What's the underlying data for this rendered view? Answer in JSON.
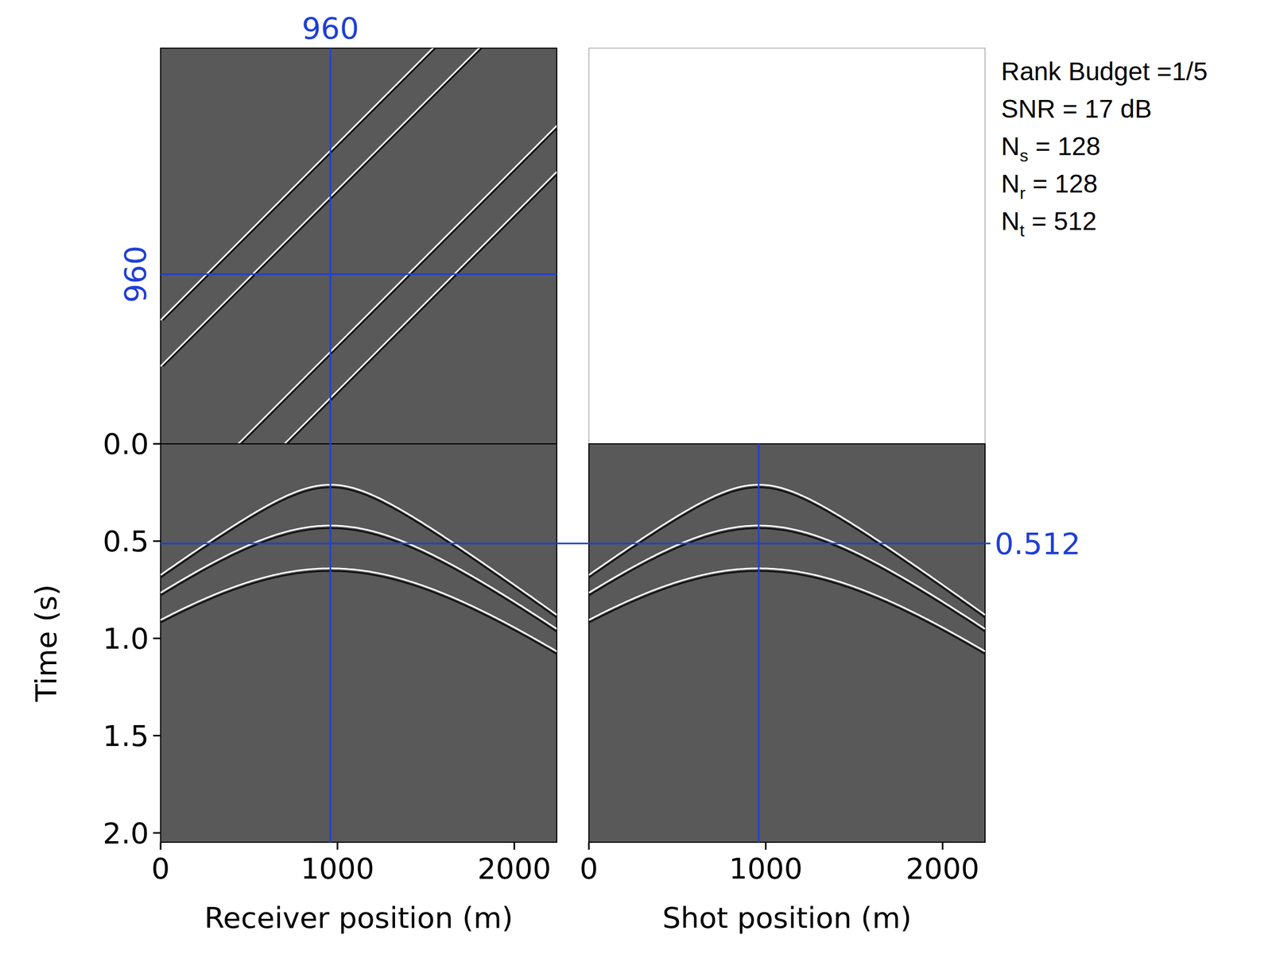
{
  "chart_data": {
    "type": "seismic_slices",
    "info": [
      {
        "text": "Rank Budget =1/5"
      },
      {
        "text": "SNR = 17 dB"
      },
      {
        "base": "N",
        "sub": "s",
        "text": " = 128"
      },
      {
        "base": "N",
        "sub": "r",
        "text": " = 128"
      },
      {
        "base": "N",
        "sub": "t",
        "text": " = 512"
      }
    ],
    "xlim": [
      0,
      2240
    ],
    "xticks": [
      0,
      1000,
      2000
    ],
    "ylim": [
      0,
      2.048
    ],
    "yticks": [
      {
        "value": 0,
        "label": "0.0"
      },
      {
        "value": 0.5,
        "label": "0.5"
      },
      {
        "value": 1,
        "label": "1.0"
      },
      {
        "value": 1.5,
        "label": "1.5"
      },
      {
        "value": 2,
        "label": "2.0"
      }
    ],
    "shot_lim": [
      0,
      2240
    ],
    "x_labels": [
      "Receiver position (m)",
      "Shot position (m)"
    ],
    "y_label": "Time (s)",
    "crosshair": {
      "receiver": 960,
      "shot": 960,
      "time": 0.512,
      "color": "#1f3fd6"
    },
    "events": {
      "apex_times": [
        0.21,
        0.42,
        0.64
      ],
      "velocity": 1500
    },
    "color": "#595959"
  }
}
